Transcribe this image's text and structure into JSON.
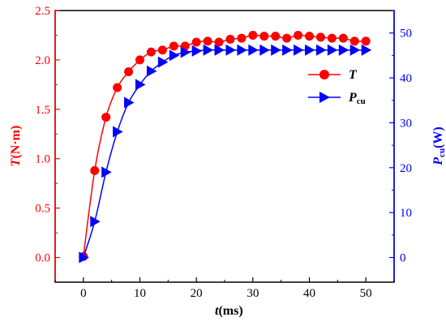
{
  "chart_data": {
    "type": "line",
    "x": [
      0,
      2,
      4,
      6,
      8,
      10,
      12,
      14,
      16,
      18,
      20,
      22,
      24,
      26,
      28,
      30,
      32,
      34,
      36,
      38,
      40,
      42,
      44,
      46,
      48,
      50
    ],
    "series": [
      {
        "name": "T",
        "axis": "left",
        "marker": "circle",
        "color": "#ff0000",
        "values": [
          0.01,
          0.88,
          1.42,
          1.72,
          1.88,
          2.0,
          2.08,
          2.1,
          2.14,
          2.14,
          2.18,
          2.19,
          2.18,
          2.21,
          2.22,
          2.25,
          2.24,
          2.24,
          2.22,
          2.25,
          2.24,
          2.23,
          2.22,
          2.22,
          2.19,
          2.19
        ]
      },
      {
        "name": "P",
        "name_sub": "cu",
        "axis": "right",
        "marker": "triangle-right",
        "color": "#0000ff",
        "values": [
          0,
          8,
          19,
          28,
          34.5,
          38.5,
          41.5,
          43.5,
          45,
          45.7,
          46,
          46.2,
          46.2,
          46.2,
          46.2,
          46.2,
          46.2,
          46.2,
          46.2,
          46.2,
          46.2,
          46.2,
          46.2,
          46.2,
          46.2,
          46.2
        ]
      }
    ],
    "xlabel": {
      "italic": "t",
      "rest": "(ms)"
    },
    "ylabel_left": {
      "italic": "T",
      "rest": "(N·m)"
    },
    "ylabel_right": {
      "italic": "P",
      "sub": "cu",
      "rest": "(W)"
    },
    "xlim": [
      -5,
      55
    ],
    "ylim_left": [
      -0.25,
      2.5
    ],
    "ylim_right": [
      -5.5,
      55
    ],
    "xticks": [
      0,
      10,
      20,
      30,
      40,
      50
    ],
    "yticks_left": [
      "0.0",
      "0.5",
      "1.0",
      "1.5",
      "2.0",
      "2.5"
    ],
    "yticks_right": [
      "0",
      "10",
      "20",
      "30",
      "40",
      "50"
    ],
    "legend_position": "top-right",
    "grid": false,
    "left_axis_color": "#ff0000",
    "right_axis_color": "#0000ff"
  }
}
